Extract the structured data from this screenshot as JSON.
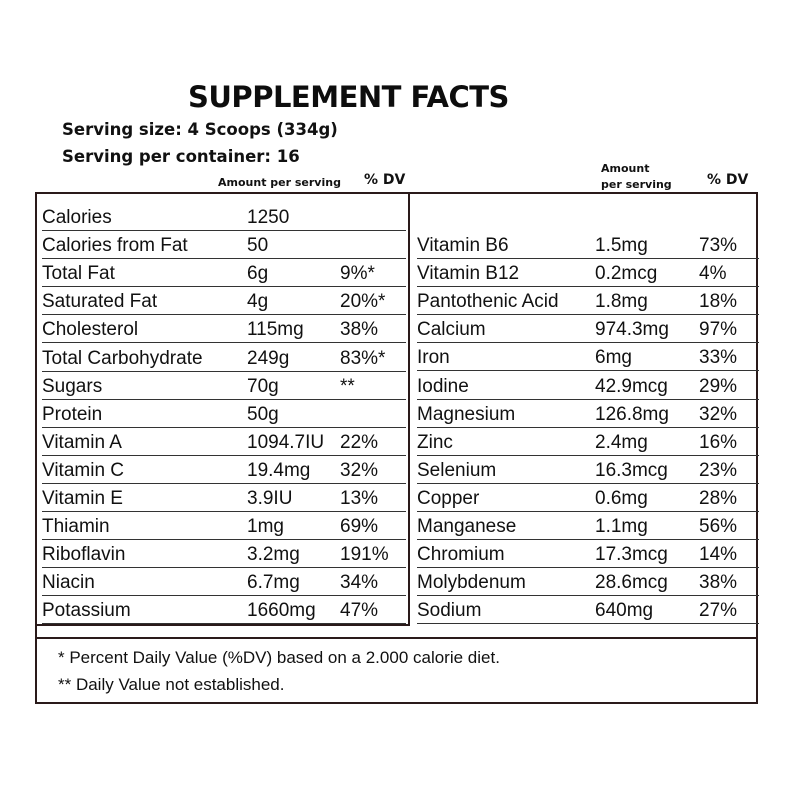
{
  "title": "SUPPLEMENT FACTS",
  "serving_size": "Serving size: 4 Scoops (334g)",
  "servings_per_container": "Serving per container: 16",
  "left_header": {
    "amount": "Amount per serving",
    "dv": "% DV"
  },
  "right_header": {
    "amount_line1": "Amount",
    "amount_line2": "per serving",
    "dv": "% DV"
  },
  "left_rows": [
    {
      "name": "Calories",
      "amount": "1250",
      "dv": ""
    },
    {
      "name": "Calories from Fat",
      "amount": "50",
      "dv": ""
    },
    {
      "name": "Total Fat",
      "amount": "6g",
      "dv": "9%*"
    },
    {
      "name": "Saturated Fat",
      "amount": "4g",
      "dv": "20%*"
    },
    {
      "name": "Cholesterol",
      "amount": "115mg",
      "dv": "38%"
    },
    {
      "name": "Total Carbohydrate",
      "amount": "249g",
      "dv": "83%*"
    },
    {
      "name": "Sugars",
      "amount": "70g",
      "dv": "**"
    },
    {
      "name": "Protein",
      "amount": "50g",
      "dv": ""
    },
    {
      "name": "Vitamin A",
      "amount": "1094.7IU",
      "dv": "22%"
    },
    {
      "name": "Vitamin C",
      "amount": "19.4mg",
      "dv": "32%"
    },
    {
      "name": "Vitamin E",
      "amount": "3.9IU",
      "dv": "13%"
    },
    {
      "name": "Thiamin",
      "amount": "1mg",
      "dv": "69%"
    },
    {
      "name": "Riboflavin",
      "amount": "3.2mg",
      "dv": "191%"
    },
    {
      "name": "Niacin",
      "amount": "6.7mg",
      "dv": "34%"
    },
    {
      "name": "Potassium",
      "amount": "1660mg",
      "dv": "47%"
    }
  ],
  "right_rows": [
    {
      "name": "Vitamin B6",
      "amount": "1.5mg",
      "dv": "73%"
    },
    {
      "name": "Vitamin B12",
      "amount": "0.2mcg",
      "dv": "4%"
    },
    {
      "name": "Pantothenic Acid",
      "amount": "1.8mg",
      "dv": "18%"
    },
    {
      "name": "Calcium",
      "amount": "974.3mg",
      "dv": "97%"
    },
    {
      "name": "Iron",
      "amount": "6mg",
      "dv": "33%"
    },
    {
      "name": "Iodine",
      "amount": "42.9mcg",
      "dv": "29%"
    },
    {
      "name": "Magnesium",
      "amount": "126.8mg",
      "dv": "32%"
    },
    {
      "name": "Zinc",
      "amount": "2.4mg",
      "dv": "16%"
    },
    {
      "name": "Selenium",
      "amount": "16.3mcg",
      "dv": "23%"
    },
    {
      "name": "Copper",
      "amount": "0.6mg",
      "dv": "28%"
    },
    {
      "name": "Manganese",
      "amount": "1.1mg",
      "dv": "56%"
    },
    {
      "name": "Chromium",
      "amount": "17.3mcg",
      "dv": "14%"
    },
    {
      "name": "Molybdenum",
      "amount": "28.6mcg",
      "dv": "38%"
    },
    {
      "name": "Sodium",
      "amount": "640mg",
      "dv": "27%"
    }
  ],
  "footnotes": [
    "* Percent Daily Value (%DV) based on a 2.000 calorie diet.",
    "** Daily Value not established."
  ]
}
